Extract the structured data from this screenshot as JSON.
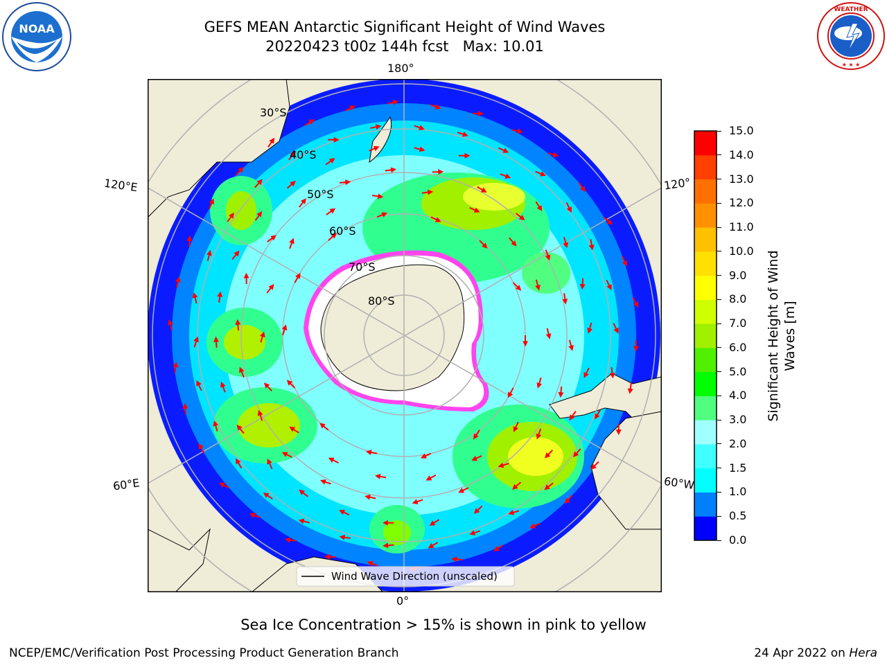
{
  "title": {
    "line1": "GEFS MEAN Antarctic Significant Height of Wind Waves",
    "line2": "20220423 t00z 144h fcst   Max: 10.01"
  },
  "map": {
    "projection": "south polar stereographic",
    "longitude_labels": {
      "top": "180°",
      "bottom": "0°",
      "upper_left": "120°E",
      "lower_left": "60°E",
      "upper_right": "120°",
      "lower_right": "60°W"
    },
    "latitude_labels": [
      "30°S",
      "40°S",
      "50°S",
      "60°S",
      "70°S",
      "80°S"
    ],
    "colors": {
      "land": "#efecd8",
      "ice_edge_pink": "#ff44ee",
      "ice_edge_yellow": "#ffcc22",
      "wind_arrow": "#ff0000",
      "grid": "#b0b0b0"
    },
    "legend": {
      "label": "Wind Wave Direction (unscaled)"
    }
  },
  "colorbar": {
    "label_line1": "Significant Height of Wind",
    "label_line2": "Waves [m]",
    "unit": "m",
    "levels": [
      "0.0",
      "0.5",
      "1.0",
      "1.5",
      "2.0",
      "3.0",
      "4.0",
      "5.0",
      "6.0",
      "7.0",
      "8.0",
      "9.0",
      "10.0",
      "11.0",
      "12.0",
      "13.0",
      "14.0",
      "15.0"
    ],
    "colors": [
      "#0000ff",
      "#0080ff",
      "#00ffff",
      "#40ffff",
      "#a0ffff",
      "#50ff80",
      "#00ff00",
      "#50f000",
      "#a0f000",
      "#d0ff00",
      "#ffff00",
      "#ffe000",
      "#ffc000",
      "#ff9000",
      "#ff7000",
      "#ff4000",
      "#ff0000"
    ]
  },
  "note": "Sea Ice Concentration > 15% is shown in pink to yellow",
  "footer": {
    "left": "NCEP/EMC/Verification Post Processing Product Generation Branch",
    "date": "24 Apr 2022 on ",
    "host": "Hera"
  }
}
